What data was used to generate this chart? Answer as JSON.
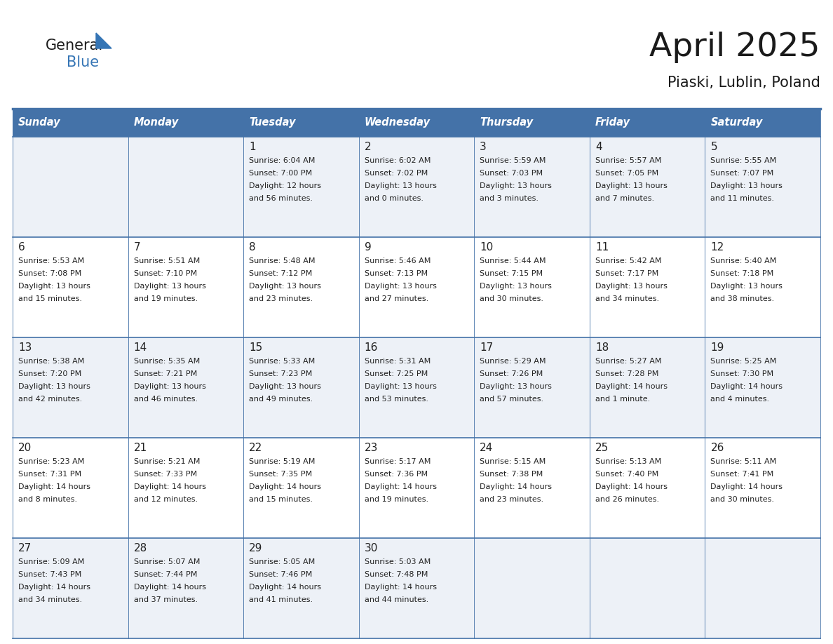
{
  "title": "April 2025",
  "subtitle": "Piaski, Lublin, Poland",
  "days_of_week": [
    "Sunday",
    "Monday",
    "Tuesday",
    "Wednesday",
    "Thursday",
    "Friday",
    "Saturday"
  ],
  "header_bg": "#4472a8",
  "header_text": "#ffffff",
  "row_bg_odd": "#edf1f7",
  "row_bg_even": "#ffffff",
  "border_color": "#4472a8",
  "text_color": "#222222",
  "calendar_data": [
    [
      {
        "day": "",
        "sunrise": "",
        "sunset": "",
        "daylight": ""
      },
      {
        "day": "",
        "sunrise": "",
        "sunset": "",
        "daylight": ""
      },
      {
        "day": "1",
        "sunrise": "Sunrise: 6:04 AM",
        "sunset": "Sunset: 7:00 PM",
        "daylight": "Daylight: 12 hours\nand 56 minutes."
      },
      {
        "day": "2",
        "sunrise": "Sunrise: 6:02 AM",
        "sunset": "Sunset: 7:02 PM",
        "daylight": "Daylight: 13 hours\nand 0 minutes."
      },
      {
        "day": "3",
        "sunrise": "Sunrise: 5:59 AM",
        "sunset": "Sunset: 7:03 PM",
        "daylight": "Daylight: 13 hours\nand 3 minutes."
      },
      {
        "day": "4",
        "sunrise": "Sunrise: 5:57 AM",
        "sunset": "Sunset: 7:05 PM",
        "daylight": "Daylight: 13 hours\nand 7 minutes."
      },
      {
        "day": "5",
        "sunrise": "Sunrise: 5:55 AM",
        "sunset": "Sunset: 7:07 PM",
        "daylight": "Daylight: 13 hours\nand 11 minutes."
      }
    ],
    [
      {
        "day": "6",
        "sunrise": "Sunrise: 5:53 AM",
        "sunset": "Sunset: 7:08 PM",
        "daylight": "Daylight: 13 hours\nand 15 minutes."
      },
      {
        "day": "7",
        "sunrise": "Sunrise: 5:51 AM",
        "sunset": "Sunset: 7:10 PM",
        "daylight": "Daylight: 13 hours\nand 19 minutes."
      },
      {
        "day": "8",
        "sunrise": "Sunrise: 5:48 AM",
        "sunset": "Sunset: 7:12 PM",
        "daylight": "Daylight: 13 hours\nand 23 minutes."
      },
      {
        "day": "9",
        "sunrise": "Sunrise: 5:46 AM",
        "sunset": "Sunset: 7:13 PM",
        "daylight": "Daylight: 13 hours\nand 27 minutes."
      },
      {
        "day": "10",
        "sunrise": "Sunrise: 5:44 AM",
        "sunset": "Sunset: 7:15 PM",
        "daylight": "Daylight: 13 hours\nand 30 minutes."
      },
      {
        "day": "11",
        "sunrise": "Sunrise: 5:42 AM",
        "sunset": "Sunset: 7:17 PM",
        "daylight": "Daylight: 13 hours\nand 34 minutes."
      },
      {
        "day": "12",
        "sunrise": "Sunrise: 5:40 AM",
        "sunset": "Sunset: 7:18 PM",
        "daylight": "Daylight: 13 hours\nand 38 minutes."
      }
    ],
    [
      {
        "day": "13",
        "sunrise": "Sunrise: 5:38 AM",
        "sunset": "Sunset: 7:20 PM",
        "daylight": "Daylight: 13 hours\nand 42 minutes."
      },
      {
        "day": "14",
        "sunrise": "Sunrise: 5:35 AM",
        "sunset": "Sunset: 7:21 PM",
        "daylight": "Daylight: 13 hours\nand 46 minutes."
      },
      {
        "day": "15",
        "sunrise": "Sunrise: 5:33 AM",
        "sunset": "Sunset: 7:23 PM",
        "daylight": "Daylight: 13 hours\nand 49 minutes."
      },
      {
        "day": "16",
        "sunrise": "Sunrise: 5:31 AM",
        "sunset": "Sunset: 7:25 PM",
        "daylight": "Daylight: 13 hours\nand 53 minutes."
      },
      {
        "day": "17",
        "sunrise": "Sunrise: 5:29 AM",
        "sunset": "Sunset: 7:26 PM",
        "daylight": "Daylight: 13 hours\nand 57 minutes."
      },
      {
        "day": "18",
        "sunrise": "Sunrise: 5:27 AM",
        "sunset": "Sunset: 7:28 PM",
        "daylight": "Daylight: 14 hours\nand 1 minute."
      },
      {
        "day": "19",
        "sunrise": "Sunrise: 5:25 AM",
        "sunset": "Sunset: 7:30 PM",
        "daylight": "Daylight: 14 hours\nand 4 minutes."
      }
    ],
    [
      {
        "day": "20",
        "sunrise": "Sunrise: 5:23 AM",
        "sunset": "Sunset: 7:31 PM",
        "daylight": "Daylight: 14 hours\nand 8 minutes."
      },
      {
        "day": "21",
        "sunrise": "Sunrise: 5:21 AM",
        "sunset": "Sunset: 7:33 PM",
        "daylight": "Daylight: 14 hours\nand 12 minutes."
      },
      {
        "day": "22",
        "sunrise": "Sunrise: 5:19 AM",
        "sunset": "Sunset: 7:35 PM",
        "daylight": "Daylight: 14 hours\nand 15 minutes."
      },
      {
        "day": "23",
        "sunrise": "Sunrise: 5:17 AM",
        "sunset": "Sunset: 7:36 PM",
        "daylight": "Daylight: 14 hours\nand 19 minutes."
      },
      {
        "day": "24",
        "sunrise": "Sunrise: 5:15 AM",
        "sunset": "Sunset: 7:38 PM",
        "daylight": "Daylight: 14 hours\nand 23 minutes."
      },
      {
        "day": "25",
        "sunrise": "Sunrise: 5:13 AM",
        "sunset": "Sunset: 7:40 PM",
        "daylight": "Daylight: 14 hours\nand 26 minutes."
      },
      {
        "day": "26",
        "sunrise": "Sunrise: 5:11 AM",
        "sunset": "Sunset: 7:41 PM",
        "daylight": "Daylight: 14 hours\nand 30 minutes."
      }
    ],
    [
      {
        "day": "27",
        "sunrise": "Sunrise: 5:09 AM",
        "sunset": "Sunset: 7:43 PM",
        "daylight": "Daylight: 14 hours\nand 34 minutes."
      },
      {
        "day": "28",
        "sunrise": "Sunrise: 5:07 AM",
        "sunset": "Sunset: 7:44 PM",
        "daylight": "Daylight: 14 hours\nand 37 minutes."
      },
      {
        "day": "29",
        "sunrise": "Sunrise: 5:05 AM",
        "sunset": "Sunset: 7:46 PM",
        "daylight": "Daylight: 14 hours\nand 41 minutes."
      },
      {
        "day": "30",
        "sunrise": "Sunrise: 5:03 AM",
        "sunset": "Sunset: 7:48 PM",
        "daylight": "Daylight: 14 hours\nand 44 minutes."
      },
      {
        "day": "",
        "sunrise": "",
        "sunset": "",
        "daylight": ""
      },
      {
        "day": "",
        "sunrise": "",
        "sunset": "",
        "daylight": ""
      },
      {
        "day": "",
        "sunrise": "",
        "sunset": "",
        "daylight": ""
      }
    ]
  ]
}
